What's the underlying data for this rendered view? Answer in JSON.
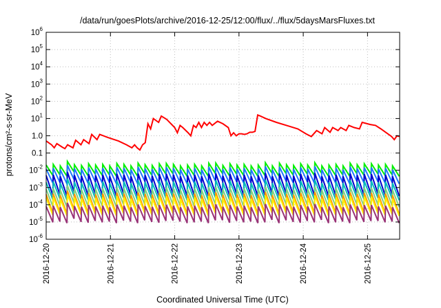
{
  "chart_data": {
    "type": "line",
    "title": "/data/run/goesPlots/archive/2016-12-25/12:00/flux/../flux/5daysMarsFluxes.txt",
    "xlabel": "Coordinated Universal Time (UTC)",
    "ylabel": "protons/cm²-s-sr-MeV",
    "y_scale": "log",
    "ylim": [
      1e-06,
      1000000.0
    ],
    "xlim": [
      "2016-12-20",
      "2016-12-25 12:00"
    ],
    "x_tick_labels": [
      "2016-12-20",
      "2016-12-21",
      "2016-12-22",
      "2016-12-23",
      "2016-12-24",
      "2016-12-25"
    ],
    "y_tick_labels": [
      {
        "base": "10",
        "exp": "-6"
      },
      {
        "base": "10",
        "exp": "-5"
      },
      {
        "base": "10",
        "exp": "-4"
      },
      {
        "base": "10",
        "exp": "-3"
      },
      {
        "base": "10",
        "exp": "-2"
      },
      {
        "base": "0.1",
        "exp": ""
      },
      {
        "base": "1.0",
        "exp": ""
      },
      {
        "base": "10",
        "exp": "1"
      },
      {
        "base": "10",
        "exp": "2"
      },
      {
        "base": "10",
        "exp": "3"
      },
      {
        "base": "10",
        "exp": "4"
      },
      {
        "base": "10",
        "exp": "5"
      },
      {
        "base": "10",
        "exp": "6"
      }
    ],
    "grid": true,
    "legend": "none",
    "series": [
      {
        "color": "#ff0000",
        "points": [
          [
            "2016-12-20 00:00",
            0.5
          ],
          [
            "2016-12-20 02:00",
            0.3
          ],
          [
            "2016-12-20 03:00",
            0.2
          ],
          [
            "2016-12-20 04:00",
            0.35
          ],
          [
            "2016-12-20 06:00",
            0.22
          ],
          [
            "2016-12-20 07:00",
            0.18
          ],
          [
            "2016-12-20 08:00",
            0.3
          ],
          [
            "2016-12-20 10:00",
            0.2
          ],
          [
            "2016-12-20 11:00",
            0.55
          ],
          [
            "2016-12-20 13:00",
            0.3
          ],
          [
            "2016-12-20 14:00",
            0.6
          ],
          [
            "2016-12-20 16:00",
            0.35
          ],
          [
            "2016-12-20 17:00",
            1.2
          ],
          [
            "2016-12-20 19:00",
            0.6
          ],
          [
            "2016-12-20 20:00",
            1.2
          ],
          [
            "2016-12-20 23:00",
            0.8
          ],
          [
            "2016-12-21 03:00",
            0.5
          ],
          [
            "2016-12-21 06:00",
            0.3
          ],
          [
            "2016-12-21 08:00",
            0.2
          ],
          [
            "2016-12-21 09:00",
            0.3
          ],
          [
            "2016-12-21 10:00",
            0.2
          ],
          [
            "2016-12-21 11:00",
            0.15
          ],
          [
            "2016-12-21 12:00",
            0.3
          ],
          [
            "2016-12-21 13:00",
            0.4
          ],
          [
            "2016-12-21 14:00",
            5
          ],
          [
            "2016-12-21 15:00",
            2.5
          ],
          [
            "2016-12-21 16:00",
            10
          ],
          [
            "2016-12-21 18:00",
            6
          ],
          [
            "2016-12-21 19:00",
            14
          ],
          [
            "2016-12-21 21:00",
            9
          ],
          [
            "2016-12-22 00:00",
            3
          ],
          [
            "2016-12-22 01:00",
            1.5
          ],
          [
            "2016-12-22 02:00",
            4
          ],
          [
            "2016-12-22 03:00",
            3
          ],
          [
            "2016-12-22 05:00",
            1.5
          ],
          [
            "2016-12-22 06:00",
            1
          ],
          [
            "2016-12-22 07:00",
            4
          ],
          [
            "2016-12-22 08:00",
            3
          ],
          [
            "2016-12-22 09:00",
            6
          ],
          [
            "2016-12-22 10:00",
            3
          ],
          [
            "2016-12-22 11:00",
            6
          ],
          [
            "2016-12-22 12:00",
            4
          ],
          [
            "2016-12-22 13:00",
            6
          ],
          [
            "2016-12-22 14:00",
            4
          ],
          [
            "2016-12-22 16:00",
            7
          ],
          [
            "2016-12-22 18:00",
            5
          ],
          [
            "2016-12-22 20:00",
            3
          ],
          [
            "2016-12-22 21:00",
            1
          ],
          [
            "2016-12-22 22:00",
            1.5
          ],
          [
            "2016-12-22 23:00",
            1
          ],
          [
            "2016-12-23 00:00",
            1.3
          ],
          [
            "2016-12-23 01:00",
            1.3
          ],
          [
            "2016-12-23 02:00",
            1.2
          ],
          [
            "2016-12-23 03:00",
            1.3
          ],
          [
            "2016-12-23 04:00",
            1.6
          ],
          [
            "2016-12-23 05:00",
            1.6
          ],
          [
            "2016-12-23 06:00",
            1.8
          ],
          [
            "2016-12-23 07:00",
            16
          ],
          [
            "2016-12-23 08:00",
            14
          ],
          [
            "2016-12-23 10:00",
            10
          ],
          [
            "2016-12-23 14:00",
            6
          ],
          [
            "2016-12-23 19:00",
            3.5
          ],
          [
            "2016-12-23 22:00",
            2.5
          ],
          [
            "2016-12-24 01:00",
            1.3
          ],
          [
            "2016-12-24 03:00",
            0.9
          ],
          [
            "2016-12-24 05:00",
            2
          ],
          [
            "2016-12-24 07:00",
            1.3
          ],
          [
            "2016-12-24 08:00",
            3
          ],
          [
            "2016-12-24 10:00",
            1.6
          ],
          [
            "2016-12-24 11:00",
            3
          ],
          [
            "2016-12-24 13:00",
            2
          ],
          [
            "2016-12-24 14:00",
            3
          ],
          [
            "2016-12-24 16:00",
            2
          ],
          [
            "2016-12-24 17:00",
            4
          ],
          [
            "2016-12-24 19:00",
            3
          ],
          [
            "2016-12-24 21:00",
            2.5
          ],
          [
            "2016-12-24 22:00",
            6
          ],
          [
            "2016-12-25 01:00",
            4.5
          ],
          [
            "2016-12-25 03:00",
            4
          ],
          [
            "2016-12-25 05:00",
            2.5
          ],
          [
            "2016-12-25 07:00",
            1.5
          ],
          [
            "2016-12-25 09:00",
            0.9
          ],
          [
            "2016-12-25 10:00",
            0.6
          ],
          [
            "2016-12-25 11:00",
            1
          ],
          [
            "2016-12-25 12:00",
            0.9
          ]
        ]
      },
      {
        "color": "#00ee00",
        "base": 0.02,
        "drop": 0.25,
        "count": 50,
        "jitter": [
          1,
          1.1,
          0.9,
          1.3,
          1.05,
          0.95,
          1.2,
          1.0,
          1.1,
          0.9
        ]
      },
      {
        "color": "#1e78ff",
        "base": 0.012,
        "drop": 0.15,
        "count": 50,
        "jitter": [
          1,
          1.1,
          0.9,
          1.3,
          1.05,
          0.95,
          1.2,
          1.0,
          1.1,
          0.9
        ]
      },
      {
        "color": "#0000cc",
        "base": 0.005,
        "drop": 0.07,
        "count": 50,
        "jitter": [
          1,
          1.1,
          0.9,
          1.3,
          1.05,
          0.95,
          1.2,
          1.0,
          1.1,
          0.9
        ]
      },
      {
        "color": "#00bbbb",
        "base": 0.002,
        "drop": 0.1,
        "count": 50,
        "jitter": [
          1,
          1.1,
          0.9,
          1.3,
          1.05,
          0.95,
          1.2,
          1.0,
          1.1,
          0.9
        ]
      },
      {
        "color": "#80d080",
        "base": 0.0008,
        "drop": 0.1,
        "count": 50,
        "jitter": [
          1,
          1.1,
          0.9,
          1.3,
          1.05,
          0.95,
          1.2,
          1.0,
          1.1,
          0.9
        ]
      },
      {
        "color": "#ff9900",
        "base": 0.0004,
        "drop": 0.08,
        "count": 50,
        "jitter": [
          1,
          1.1,
          0.9,
          1.3,
          1.05,
          0.95,
          1.2,
          1.0,
          1.1,
          0.9
        ]
      },
      {
        "color": "#ffee00",
        "base": 0.00025,
        "drop": 0.1,
        "count": 50,
        "jitter": [
          1,
          1.1,
          0.9,
          1.3,
          1.05,
          0.95,
          1.2,
          1.0,
          1.1,
          0.9
        ]
      },
      {
        "color": "#993377",
        "base": 8e-05,
        "drop": 0.12,
        "count": 50,
        "jitter": [
          1,
          1.1,
          0.9,
          1.3,
          1.05,
          0.95,
          1.2,
          1.0,
          1.1,
          0.9
        ]
      }
    ]
  }
}
